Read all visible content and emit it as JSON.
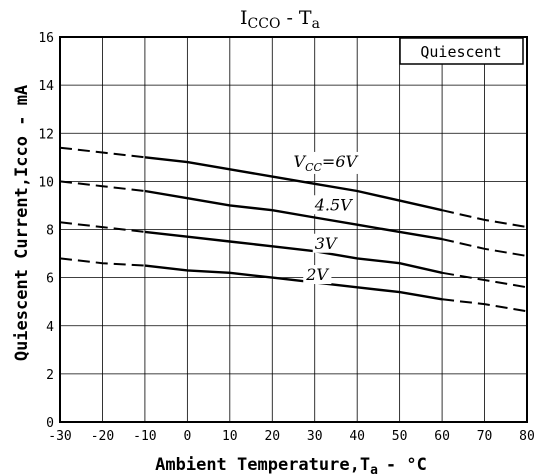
{
  "chart_data": {
    "type": "line",
    "title": "I",
    "title_sub": "CCO",
    "title_rest": "- T",
    "title_sub2": "a",
    "annotation": "Quiescent",
    "xlabel": "Ambient Temperature,T",
    "xlabel_sub": "a",
    "xlabel_unit": "- °C",
    "ylabel": "Quiescent Current,Icco - mA",
    "xlim": [
      -30,
      80
    ],
    "ylim": [
      0,
      16
    ],
    "x_ticks": [
      "-30",
      "-20",
      "-10",
      "0",
      "10",
      "20",
      "30",
      "40",
      "50",
      "60",
      "70",
      "80"
    ],
    "y_ticks": [
      "0",
      "2",
      "4",
      "6",
      "8",
      "10",
      "12",
      "14",
      "16"
    ],
    "grid": true,
    "solid_range": [
      -10,
      60
    ],
    "series": [
      {
        "name": "VCC=6V",
        "label_main": "V",
        "label_sub": "CC",
        "label_rest": "=6V",
        "label_at": [
          25,
          10.6
        ],
        "points": [
          [
            -30,
            11.4
          ],
          [
            -20,
            11.2
          ],
          [
            -10,
            11.0
          ],
          [
            0,
            10.8
          ],
          [
            10,
            10.5
          ],
          [
            20,
            10.2
          ],
          [
            30,
            9.9
          ],
          [
            40,
            9.6
          ],
          [
            50,
            9.2
          ],
          [
            60,
            8.8
          ],
          [
            70,
            8.4
          ],
          [
            80,
            8.1
          ]
        ]
      },
      {
        "name": "4.5V",
        "label_main": "4.5V",
        "label_at": [
          30,
          8.8
        ],
        "points": [
          [
            -30,
            10.0
          ],
          [
            -20,
            9.8
          ],
          [
            -10,
            9.6
          ],
          [
            0,
            9.3
          ],
          [
            10,
            9.0
          ],
          [
            20,
            8.8
          ],
          [
            30,
            8.5
          ],
          [
            40,
            8.2
          ],
          [
            50,
            7.9
          ],
          [
            60,
            7.6
          ],
          [
            70,
            7.2
          ],
          [
            80,
            6.9
          ]
        ]
      },
      {
        "name": "3V",
        "label_main": "3V",
        "label_at": [
          30,
          7.2
        ],
        "points": [
          [
            -30,
            8.3
          ],
          [
            -20,
            8.1
          ],
          [
            -10,
            7.9
          ],
          [
            0,
            7.7
          ],
          [
            10,
            7.5
          ],
          [
            20,
            7.3
          ],
          [
            30,
            7.1
          ],
          [
            40,
            6.8
          ],
          [
            50,
            6.6
          ],
          [
            60,
            6.2
          ],
          [
            70,
            5.9
          ],
          [
            80,
            5.6
          ]
        ]
      },
      {
        "name": "2V",
        "label_main": "2V",
        "label_at": [
          28,
          5.9
        ],
        "points": [
          [
            -30,
            6.8
          ],
          [
            -20,
            6.6
          ],
          [
            -10,
            6.5
          ],
          [
            0,
            6.3
          ],
          [
            10,
            6.2
          ],
          [
            20,
            6.0
          ],
          [
            30,
            5.8
          ],
          [
            40,
            5.6
          ],
          [
            50,
            5.4
          ],
          [
            60,
            5.1
          ],
          [
            70,
            4.9
          ],
          [
            80,
            4.6
          ]
        ]
      }
    ]
  }
}
